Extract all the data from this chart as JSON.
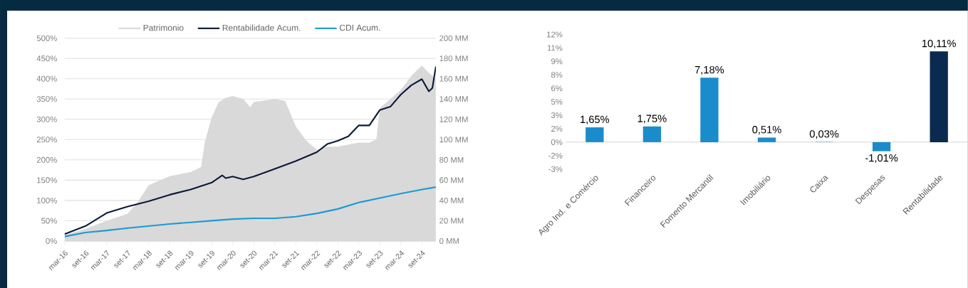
{
  "chart_data": [
    {
      "type": "line",
      "xlim": [
        "2016-03",
        "2025-01"
      ],
      "xticks": [
        {
          "value": "2016-03",
          "label": "mar-16"
        },
        {
          "value": "2016-09",
          "label": "set-16"
        },
        {
          "value": "2017-03",
          "label": "mar-17"
        },
        {
          "value": "2017-09",
          "label": "set-17"
        },
        {
          "value": "2018-03",
          "label": "mar-18"
        },
        {
          "value": "2018-09",
          "label": "set-18"
        },
        {
          "value": "2019-03",
          "label": "mar-19"
        },
        {
          "value": "2019-09",
          "label": "set-19"
        },
        {
          "value": "2020-03",
          "label": "mar-20"
        },
        {
          "value": "2020-09",
          "label": "set-20"
        },
        {
          "value": "2021-03",
          "label": "mar-21"
        },
        {
          "value": "2021-09",
          "label": "set-21"
        },
        {
          "value": "2022-03",
          "label": "mar-22"
        },
        {
          "value": "2022-09",
          "label": "set-22"
        },
        {
          "value": "2023-03",
          "label": "mar-23"
        },
        {
          "value": "2023-09",
          "label": "set-23"
        },
        {
          "value": "2024-03",
          "label": "mar-24"
        },
        {
          "value": "2024-09",
          "label": "set-24"
        }
      ],
      "ylim": [
        0,
        500
      ],
      "yticks": [
        {
          "value": 0,
          "label": "0%"
        },
        {
          "value": 50,
          "label": "50%"
        },
        {
          "value": 100,
          "label": "100%"
        },
        {
          "value": 150,
          "label": "150%"
        },
        {
          "value": 200,
          "label": "200%"
        },
        {
          "value": 250,
          "label": "250%"
        },
        {
          "value": 300,
          "label": "300%"
        },
        {
          "value": 350,
          "label": "350%"
        },
        {
          "value": 400,
          "label": "400%"
        },
        {
          "value": 450,
          "label": "450%"
        },
        {
          "value": 500,
          "label": "500%"
        }
      ],
      "y2lim": [
        0,
        200
      ],
      "y2ticks": [
        {
          "value": 0,
          "label": "0 MM"
        },
        {
          "value": 20,
          "label": "20 MM"
        },
        {
          "value": 40,
          "label": "40 MM"
        },
        {
          "value": 60,
          "label": "60 MM"
        },
        {
          "value": 80,
          "label": "80 MM"
        },
        {
          "value": 100,
          "label": "100 MM"
        },
        {
          "value": 120,
          "label": "120 MM"
        },
        {
          "value": 140,
          "label": "140 MM"
        },
        {
          "value": 160,
          "label": "160 MM"
        },
        {
          "value": 180,
          "label": "180 MM"
        },
        {
          "value": 200,
          "label": "200 MM"
        }
      ],
      "grid": "y",
      "legend": "top",
      "series": [
        {
          "name": "Patrimonio",
          "type": "area",
          "axis": "y2",
          "color": "#d9d9d9",
          "x": [
            "2016-03",
            "2016-09",
            "2017-03",
            "2017-09",
            "2017-12",
            "2018-03",
            "2018-09",
            "2019-03",
            "2019-06",
            "2019-07",
            "2019-09",
            "2019-11",
            "2020-01",
            "2020-03",
            "2020-06",
            "2020-08",
            "2020-09",
            "2021-03",
            "2021-06",
            "2021-09",
            "2021-12",
            "2022-03",
            "2022-06",
            "2022-09",
            "2023-03",
            "2023-06",
            "2023-08",
            "2023-09",
            "2024-03",
            "2024-06",
            "2024-09",
            "2024-11",
            "2025-01"
          ],
          "values": [
            6,
            12,
            20,
            27,
            39,
            55,
            64,
            68,
            73,
            97,
            122,
            137,
            141,
            143,
            140,
            132,
            137,
            140,
            138,
            113,
            99,
            90,
            93,
            93,
            97,
            97,
            100,
            131,
            149,
            163,
            173,
            166,
            160
          ]
        },
        {
          "name": "Rentabilidade Acum.",
          "type": "line",
          "color": "#0b1a3a",
          "x": [
            "2016-03",
            "2016-09",
            "2017-03",
            "2017-09",
            "2018-03",
            "2018-09",
            "2019-03",
            "2019-09",
            "2019-12",
            "2020-01",
            "2020-03",
            "2020-06",
            "2020-09",
            "2021-03",
            "2021-09",
            "2022-03",
            "2022-06",
            "2022-09",
            "2022-12",
            "2023-03",
            "2023-06",
            "2023-09",
            "2023-12",
            "2024-03",
            "2024-06",
            "2024-09",
            "2024-11",
            "2024-12",
            "2025-01"
          ],
          "values": [
            17,
            37,
            69,
            85,
            98,
            114,
            127,
            144,
            162,
            155,
            159,
            152,
            159,
            178,
            197,
            219,
            239,
            247,
            258,
            285,
            285,
            323,
            331,
            361,
            384,
            399,
            369,
            377,
            430
          ]
        },
        {
          "name": "CDI Acum.",
          "type": "line",
          "color": "#1a9ad6",
          "x": [
            "2016-03",
            "2016-09",
            "2017-03",
            "2017-09",
            "2018-03",
            "2018-09",
            "2019-03",
            "2019-09",
            "2020-03",
            "2020-09",
            "2021-03",
            "2021-09",
            "2022-03",
            "2022-09",
            "2023-03",
            "2023-09",
            "2024-03",
            "2024-09",
            "2025-01"
          ],
          "values": [
            11,
            21,
            26,
            32,
            37,
            42,
            46,
            50,
            54,
            56,
            56,
            60,
            68,
            79,
            95,
            106,
            117,
            127,
            133
          ]
        }
      ]
    },
    {
      "type": "bar",
      "categories": [
        "Agro Ind. e Comércio",
        "Financeiro",
        "Fomento Mercantil",
        "Imobiliário",
        "Caixa",
        "Despesas",
        "Rentabilidade"
      ],
      "values": [
        1.65,
        1.75,
        7.18,
        0.51,
        0.03,
        -1.01,
        10.11
      ],
      "value_labels": [
        "1,65%",
        "1,75%",
        "7,18%",
        "0,51%",
        "0,03%",
        "-1,01%",
        "10,11%"
      ],
      "colors": [
        "#1a8ccc",
        "#1a8ccc",
        "#1a8ccc",
        "#1a8ccc",
        "#1a8ccc",
        "#1a8ccc",
        "#0a2a4f"
      ],
      "ylim": [
        -3,
        12
      ],
      "yticks": [
        {
          "value": -3,
          "label": "-3%"
        },
        {
          "value": -1.5,
          "label": "-2%"
        },
        {
          "value": 0,
          "label": "0%"
        },
        {
          "value": 1.5,
          "label": "2%"
        },
        {
          "value": 3,
          "label": "3%"
        },
        {
          "value": 4.5,
          "label": "5%"
        },
        {
          "value": 6,
          "label": "6%"
        },
        {
          "value": 7.5,
          "label": "8%"
        },
        {
          "value": 9,
          "label": "9%"
        },
        {
          "value": 10.5,
          "label": "11%"
        },
        {
          "value": 12,
          "label": "12%"
        }
      ]
    }
  ]
}
